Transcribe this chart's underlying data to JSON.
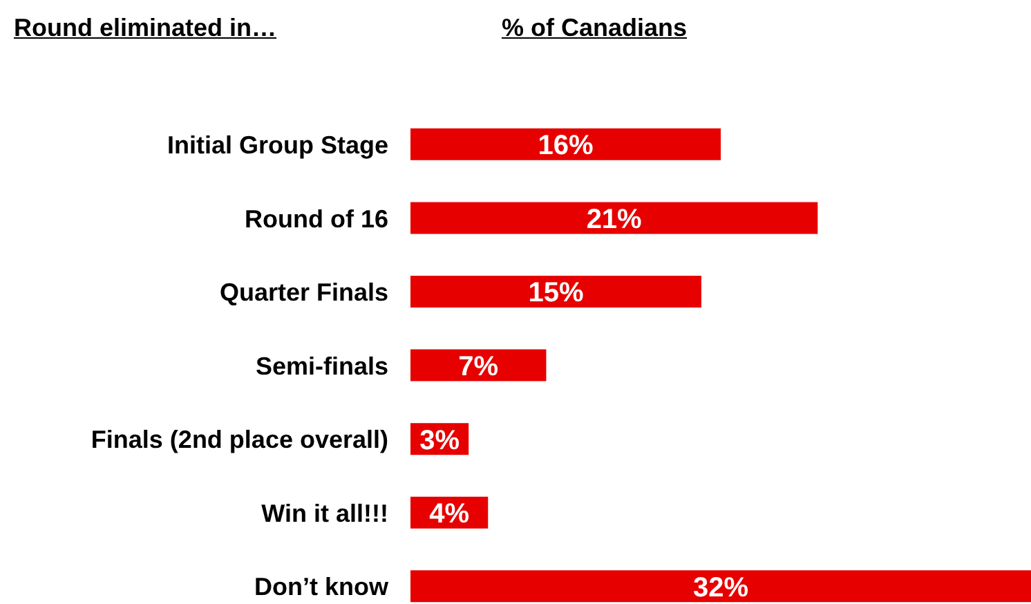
{
  "chart_data": {
    "type": "bar",
    "orientation": "horizontal",
    "ylabel": "Round eliminated in…",
    "xlabel": "% of Canadians",
    "categories": [
      "Initial Group Stage",
      "Round of 16",
      "Quarter Finals",
      "Semi-finals",
      "Finals (2nd place overall)",
      "Win it all!!!",
      "Don’t know"
    ],
    "values": [
      16,
      21,
      15,
      7,
      3,
      4,
      32
    ],
    "value_labels": [
      "16%",
      "21%",
      "15%",
      "7%",
      "3%",
      "4%",
      "32%"
    ],
    "color": "#e60000",
    "xlim": [
      0,
      32
    ],
    "tick_labels": "y"
  }
}
